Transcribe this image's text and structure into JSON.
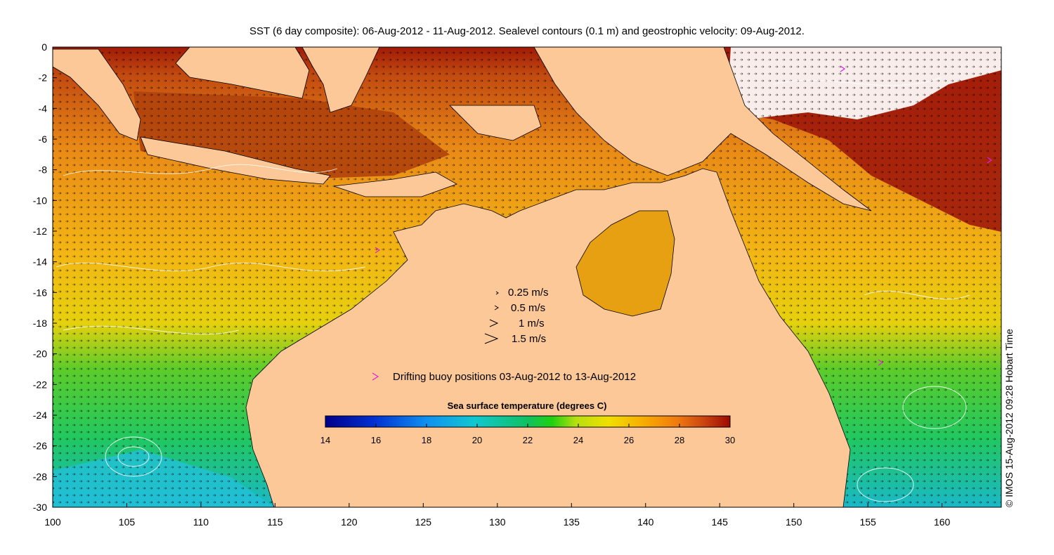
{
  "title": "SST (6 day composite): 06-Aug-2012 - 11-Aug-2012. Sealevel contours (0.1 m) and geostrophic velocity: 09-Aug-2012.",
  "credit": "© IMOS 15-Aug-2012 09:28 Hobart Time",
  "x_ticks": [
    "100",
    "105",
    "110",
    "115",
    "120",
    "125",
    "130",
    "135",
    "140",
    "145",
    "150",
    "155",
    "160"
  ],
  "y_ticks": [
    "0",
    "-2",
    "-4",
    "-6",
    "-8",
    "-10",
    "-12",
    "-14",
    "-16",
    "-18",
    "-20",
    "-22",
    "-24",
    "-26",
    "-28",
    "-30"
  ],
  "x_range": [
    100,
    164
  ],
  "y_range": [
    -30,
    0
  ],
  "velocity_legend": [
    "0.25 m/s",
    "0.5 m/s",
    "1 m/s",
    "1.5 m/s"
  ],
  "buoy_legend": "Drifting buoy positions 03-Aug-2012 to 13-Aug-2012",
  "colorbar": {
    "title": "Sea surface temperature (degrees C)",
    "ticks": [
      "14",
      "16",
      "18",
      "20",
      "22",
      "24",
      "26",
      "28",
      "30"
    ],
    "range": [
      14,
      30
    ]
  },
  "colors": {
    "land": "#fcc897",
    "buoy": "#e020e0",
    "vector": "#000000",
    "contour": "#ffffff"
  }
}
